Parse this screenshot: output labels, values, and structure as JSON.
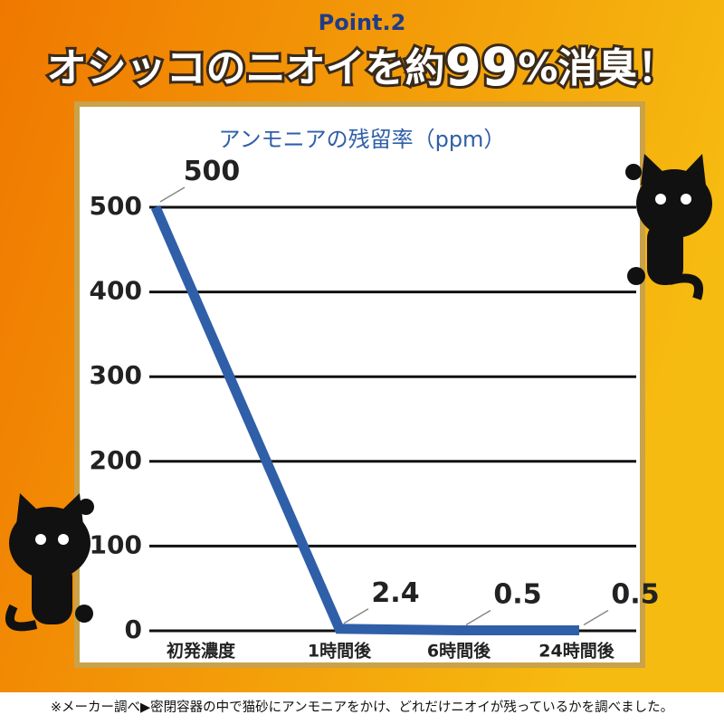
{
  "header": {
    "label": "Point.2",
    "headline": [
      "オシッコのニオイを約",
      "99",
      "%消臭！"
    ]
  },
  "chart_data": {
    "type": "line",
    "title": "アンモニアの残留率（ppm）",
    "categories": [
      "初発濃度",
      "1時間後",
      "6時間後",
      "24時間後"
    ],
    "values": [
      500,
      2.4,
      0.5,
      0.5
    ],
    "color": "#2f5fa8",
    "ylim": [
      0,
      500
    ],
    "yticks": [
      0,
      100,
      200,
      300,
      400,
      500
    ],
    "grid": true
  },
  "footnote": "※メーカー調べ▶密閉容器の中で猫砂にアンモニアをかけ、どれだけニオイが残っているかを調べました。"
}
